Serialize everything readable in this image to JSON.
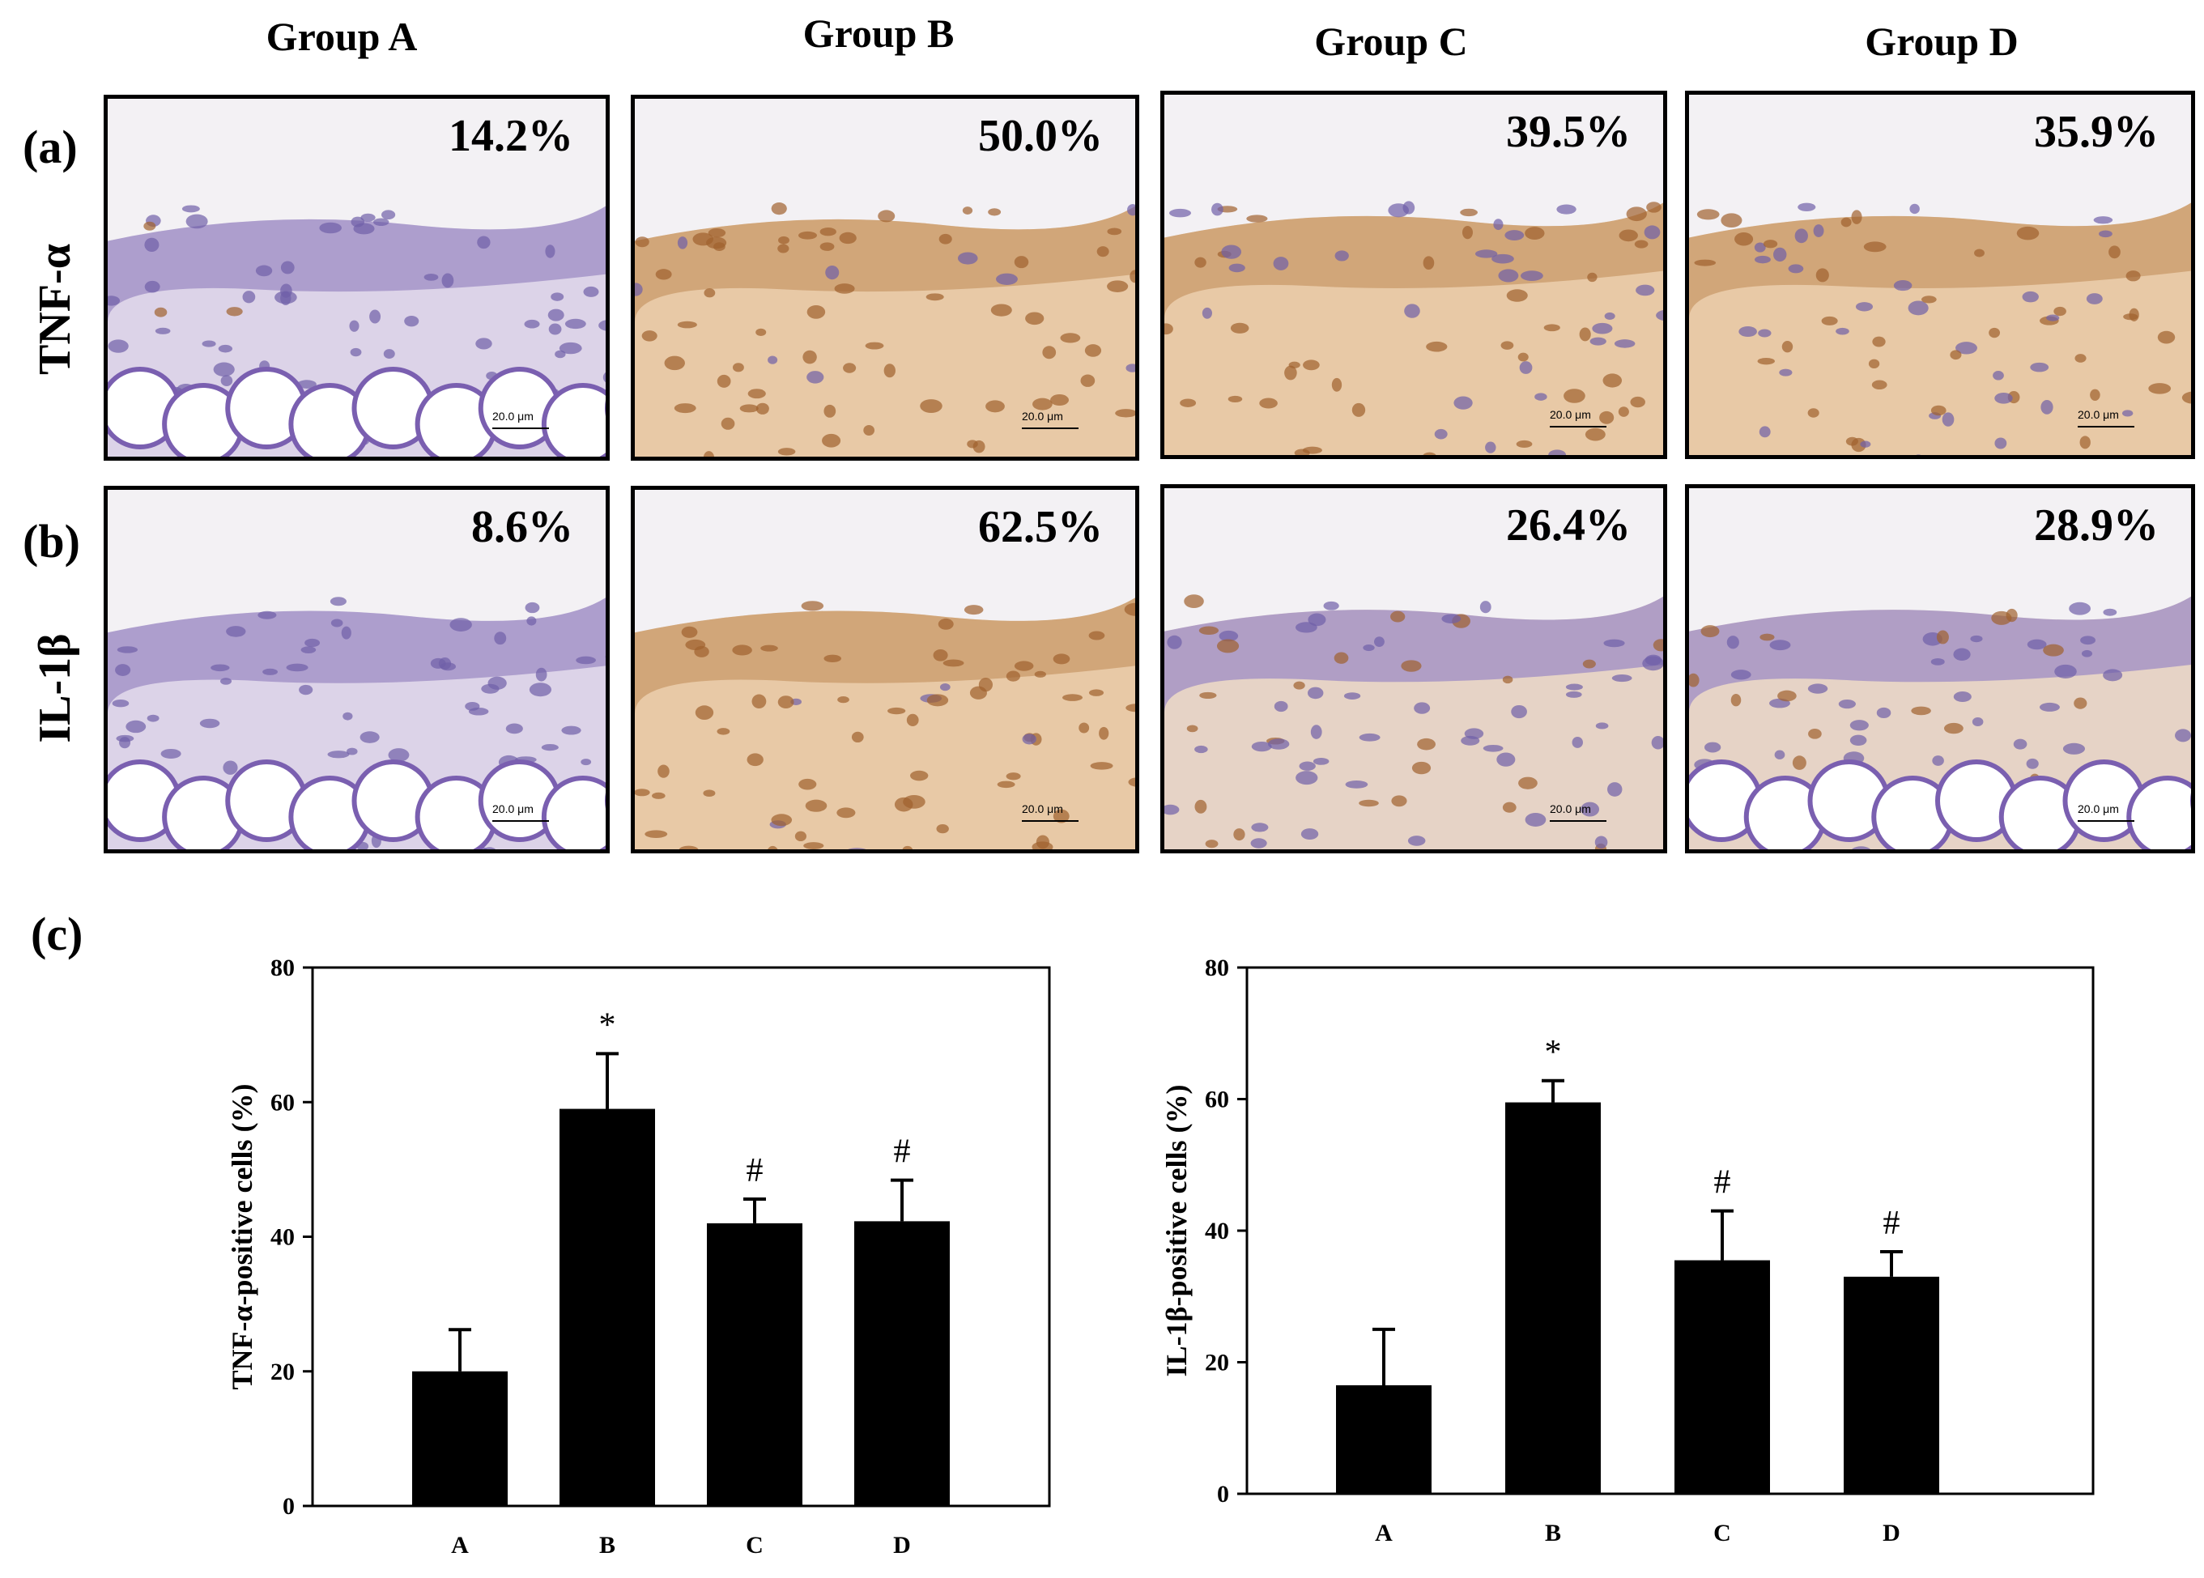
{
  "figure": {
    "groups": [
      "Group A",
      "Group B",
      "Group C",
      "Group D"
    ],
    "rows": [
      {
        "letter": "(a)",
        "marker": "TNF-α",
        "percents": [
          "14.2%",
          "50.0%",
          "39.5%",
          "35.9%"
        ]
      },
      {
        "letter": "(b)",
        "marker": "IL-1β",
        "percents": [
          "8.6%",
          "62.5%",
          "26.4%",
          "28.9%"
        ]
      }
    ],
    "scale_bar_label": "20.0 μm",
    "panel_c_letter": "(c)",
    "colors": {
      "hematoxylin": "#8c7cc0",
      "dab_brown": "#c98a4a",
      "bar": "#000000"
    }
  },
  "chart_data": [
    {
      "type": "bar",
      "categories": [
        "A",
        "B",
        "C",
        "D"
      ],
      "values": [
        20,
        59,
        42,
        42.3
      ],
      "errors": [
        6.2,
        8.2,
        3.6,
        6.1
      ],
      "annotations": [
        "",
        "*",
        "#",
        "#"
      ],
      "xlabel": "",
      "ylabel": "TNF-α-positive cells (%)",
      "ylim": [
        0,
        80
      ],
      "yticks": [
        0,
        20,
        40,
        60,
        80
      ]
    },
    {
      "type": "bar",
      "categories": [
        "A",
        "B",
        "C",
        "D"
      ],
      "values": [
        16.5,
        59.5,
        35.5,
        33
      ],
      "errors": [
        8.5,
        3.3,
        7.5,
        3.8
      ],
      "annotations": [
        "",
        "*",
        "#",
        "#"
      ],
      "xlabel": "",
      "ylabel": "IL-1β-positive cells (%)",
      "ylim": [
        0,
        80
      ],
      "yticks": [
        0,
        20,
        40,
        60,
        80
      ]
    }
  ]
}
